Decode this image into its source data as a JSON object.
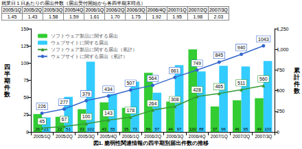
{
  "table": {
    "title": "就業日１日あたりの届出件数（届出受付開始から各四半期末時点）",
    "header": [
      "2005/1Q",
      "2005/2Q",
      "2005/3Q",
      "2005/4Q",
      "2006/1Q",
      "2006/2Q",
      "2006/3Q",
      "2006/4Q",
      "2007/1Q",
      "2007/2Q",
      "2007/3Q"
    ],
    "rows": [
      [
        "1.45",
        "1.43",
        "1.58",
        "1.59",
        "1.61",
        "1.70",
        "1.75",
        "1.92",
        "1.95",
        "1.98",
        "2.03"
      ]
    ]
  },
  "chart_data": {
    "type": "bar",
    "title": "図1. 脆弱性関連情報の四半期別届出件数の推移",
    "categories": [
      "2005/1Q",
      "2005/2Q",
      "2005/3Q",
      "2005/4Q",
      "2006/1Q",
      "2006/2Q",
      "2006/3Q",
      "2006/4Q",
      "2007/1Q",
      "2007/2Q",
      "2007/3Q"
    ],
    "y_label": "四半期件数",
    "y2_label": "累計件数",
    "ylim": [
      0,
      150
    ],
    "yticks": [
      0,
      25,
      50,
      75,
      100,
      125,
      150
    ],
    "y2lim": [
      0,
      1250
    ],
    "y2ticks": [
      0,
      250,
      500,
      750,
      1000,
      1250
    ],
    "grid": false,
    "legend": "top-left",
    "data_labels": true,
    "series": [
      {
        "name": "ソフトウェア製品に関する届出",
        "type": "bar",
        "color": "#33cc33",
        "values": [
          26,
          22,
          33,
          43,
          35,
          86,
          44,
          120,
          37,
          46,
          49
        ]
      },
      {
        "name": "ウェブサイトに関する届出",
        "type": "bar",
        "color": "#33ccff",
        "values": [
          21,
          51,
          102,
          55,
          73,
          57,
          97,
          88,
          96,
          95,
          103
        ]
      },
      {
        "name": "ソフトウェア製品に関する届出（累計）",
        "type": "line",
        "axis": "y2",
        "color": "#339933",
        "marker": "triangle",
        "values": [
          45,
          67,
          100,
          143,
          178,
          264,
          308,
          428,
          465,
          511,
          560
        ]
      },
      {
        "name": "ウェブサイトに関する届出（累計）",
        "type": "line",
        "axis": "y2",
        "color": "#3366cc",
        "marker": "circle",
        "values": [
          226,
          277,
          379,
          434,
          507,
          564,
          661,
          749,
          845,
          940,
          1043
        ]
      }
    ]
  }
}
